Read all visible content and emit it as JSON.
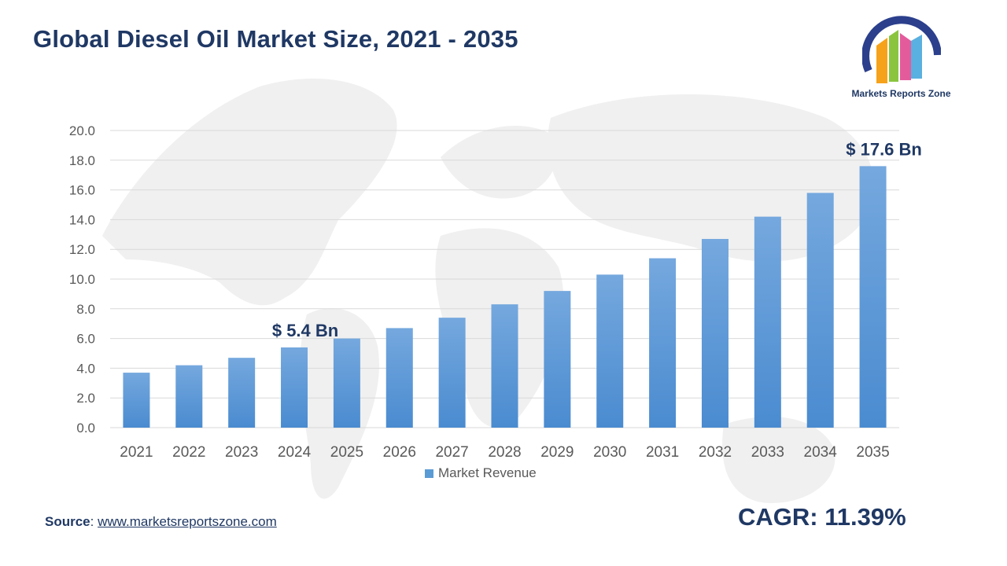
{
  "header": {
    "title": "Global Diesel Oil Market Size, 2021 - 2035",
    "logo_text": "Markets Reports Zone"
  },
  "footer": {
    "source_label": "Source",
    "source_sep": ": ",
    "source_link": "www.marketsreportszone.com",
    "cagr": "CAGR: 11.39%"
  },
  "colors": {
    "title": "#1f3864",
    "bar_top": "#75a8de",
    "bar_bottom": "#4a8bd0",
    "grid": "#d9d9d9",
    "axis_text": "#595959"
  },
  "chart_data": {
    "type": "bar",
    "categories": [
      "2021",
      "2022",
      "2023",
      "2024",
      "2025",
      "2026",
      "2027",
      "2028",
      "2029",
      "2030",
      "2031",
      "2032",
      "2033",
      "2034",
      "2035"
    ],
    "series": [
      {
        "name": "Market Revenue",
        "values": [
          3.7,
          4.2,
          4.7,
          5.4,
          6.0,
          6.7,
          7.4,
          8.3,
          9.2,
          10.3,
          11.4,
          12.7,
          14.2,
          15.8,
          17.6
        ]
      }
    ],
    "ylim": [
      0,
      20
    ],
    "yticks": [
      "0.0",
      "2.0",
      "4.0",
      "6.0",
      "8.0",
      "10.0",
      "12.0",
      "14.0",
      "16.0",
      "18.0",
      "20.0"
    ],
    "grid": true,
    "legend_position": "bottom",
    "annotations": [
      {
        "category": "2024",
        "text": "$ 5.4 Bn"
      },
      {
        "category": "2035",
        "text": "$ 17.6 Bn"
      }
    ]
  }
}
